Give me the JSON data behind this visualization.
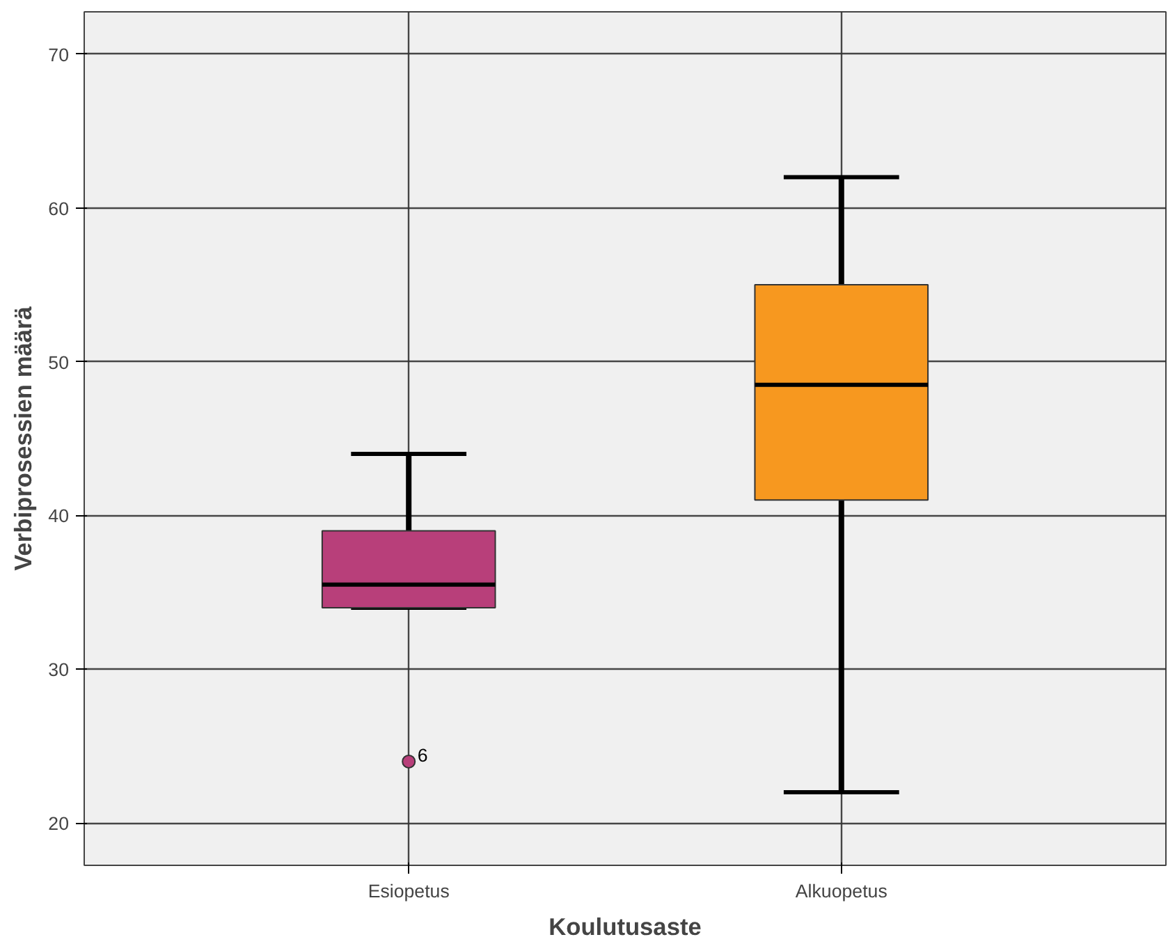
{
  "chart_data": {
    "type": "box",
    "xlabel": "Koulutusaste",
    "ylabel": "Verbiprosessien määrä",
    "categories": [
      "Esiopetus",
      "Alkuopetus"
    ],
    "boxes": [
      {
        "low": 34,
        "q1": 34,
        "median": 35.5,
        "q3": 39,
        "high": 44,
        "outliers": [
          24
        ]
      },
      {
        "low": 22,
        "q1": 41,
        "median": 48.5,
        "q3": 55,
        "high": 62
      }
    ],
    "colors": [
      "#b83f7a",
      "#f7981f"
    ],
    "annotations": [
      "6"
    ],
    "ylim": [
      17.25,
      72.75
    ],
    "yticks": [
      20,
      30,
      40,
      50,
      60,
      70
    ],
    "grid": true
  }
}
